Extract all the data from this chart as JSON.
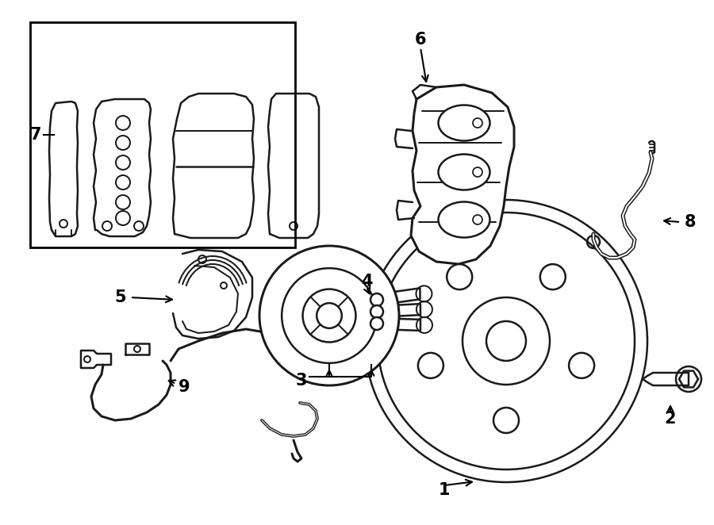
{
  "background_color": "#ffffff",
  "line_color": "#1a1a1a",
  "line_width": 1.8,
  "fig_width": 9.0,
  "fig_height": 6.62,
  "dpi": 100
}
